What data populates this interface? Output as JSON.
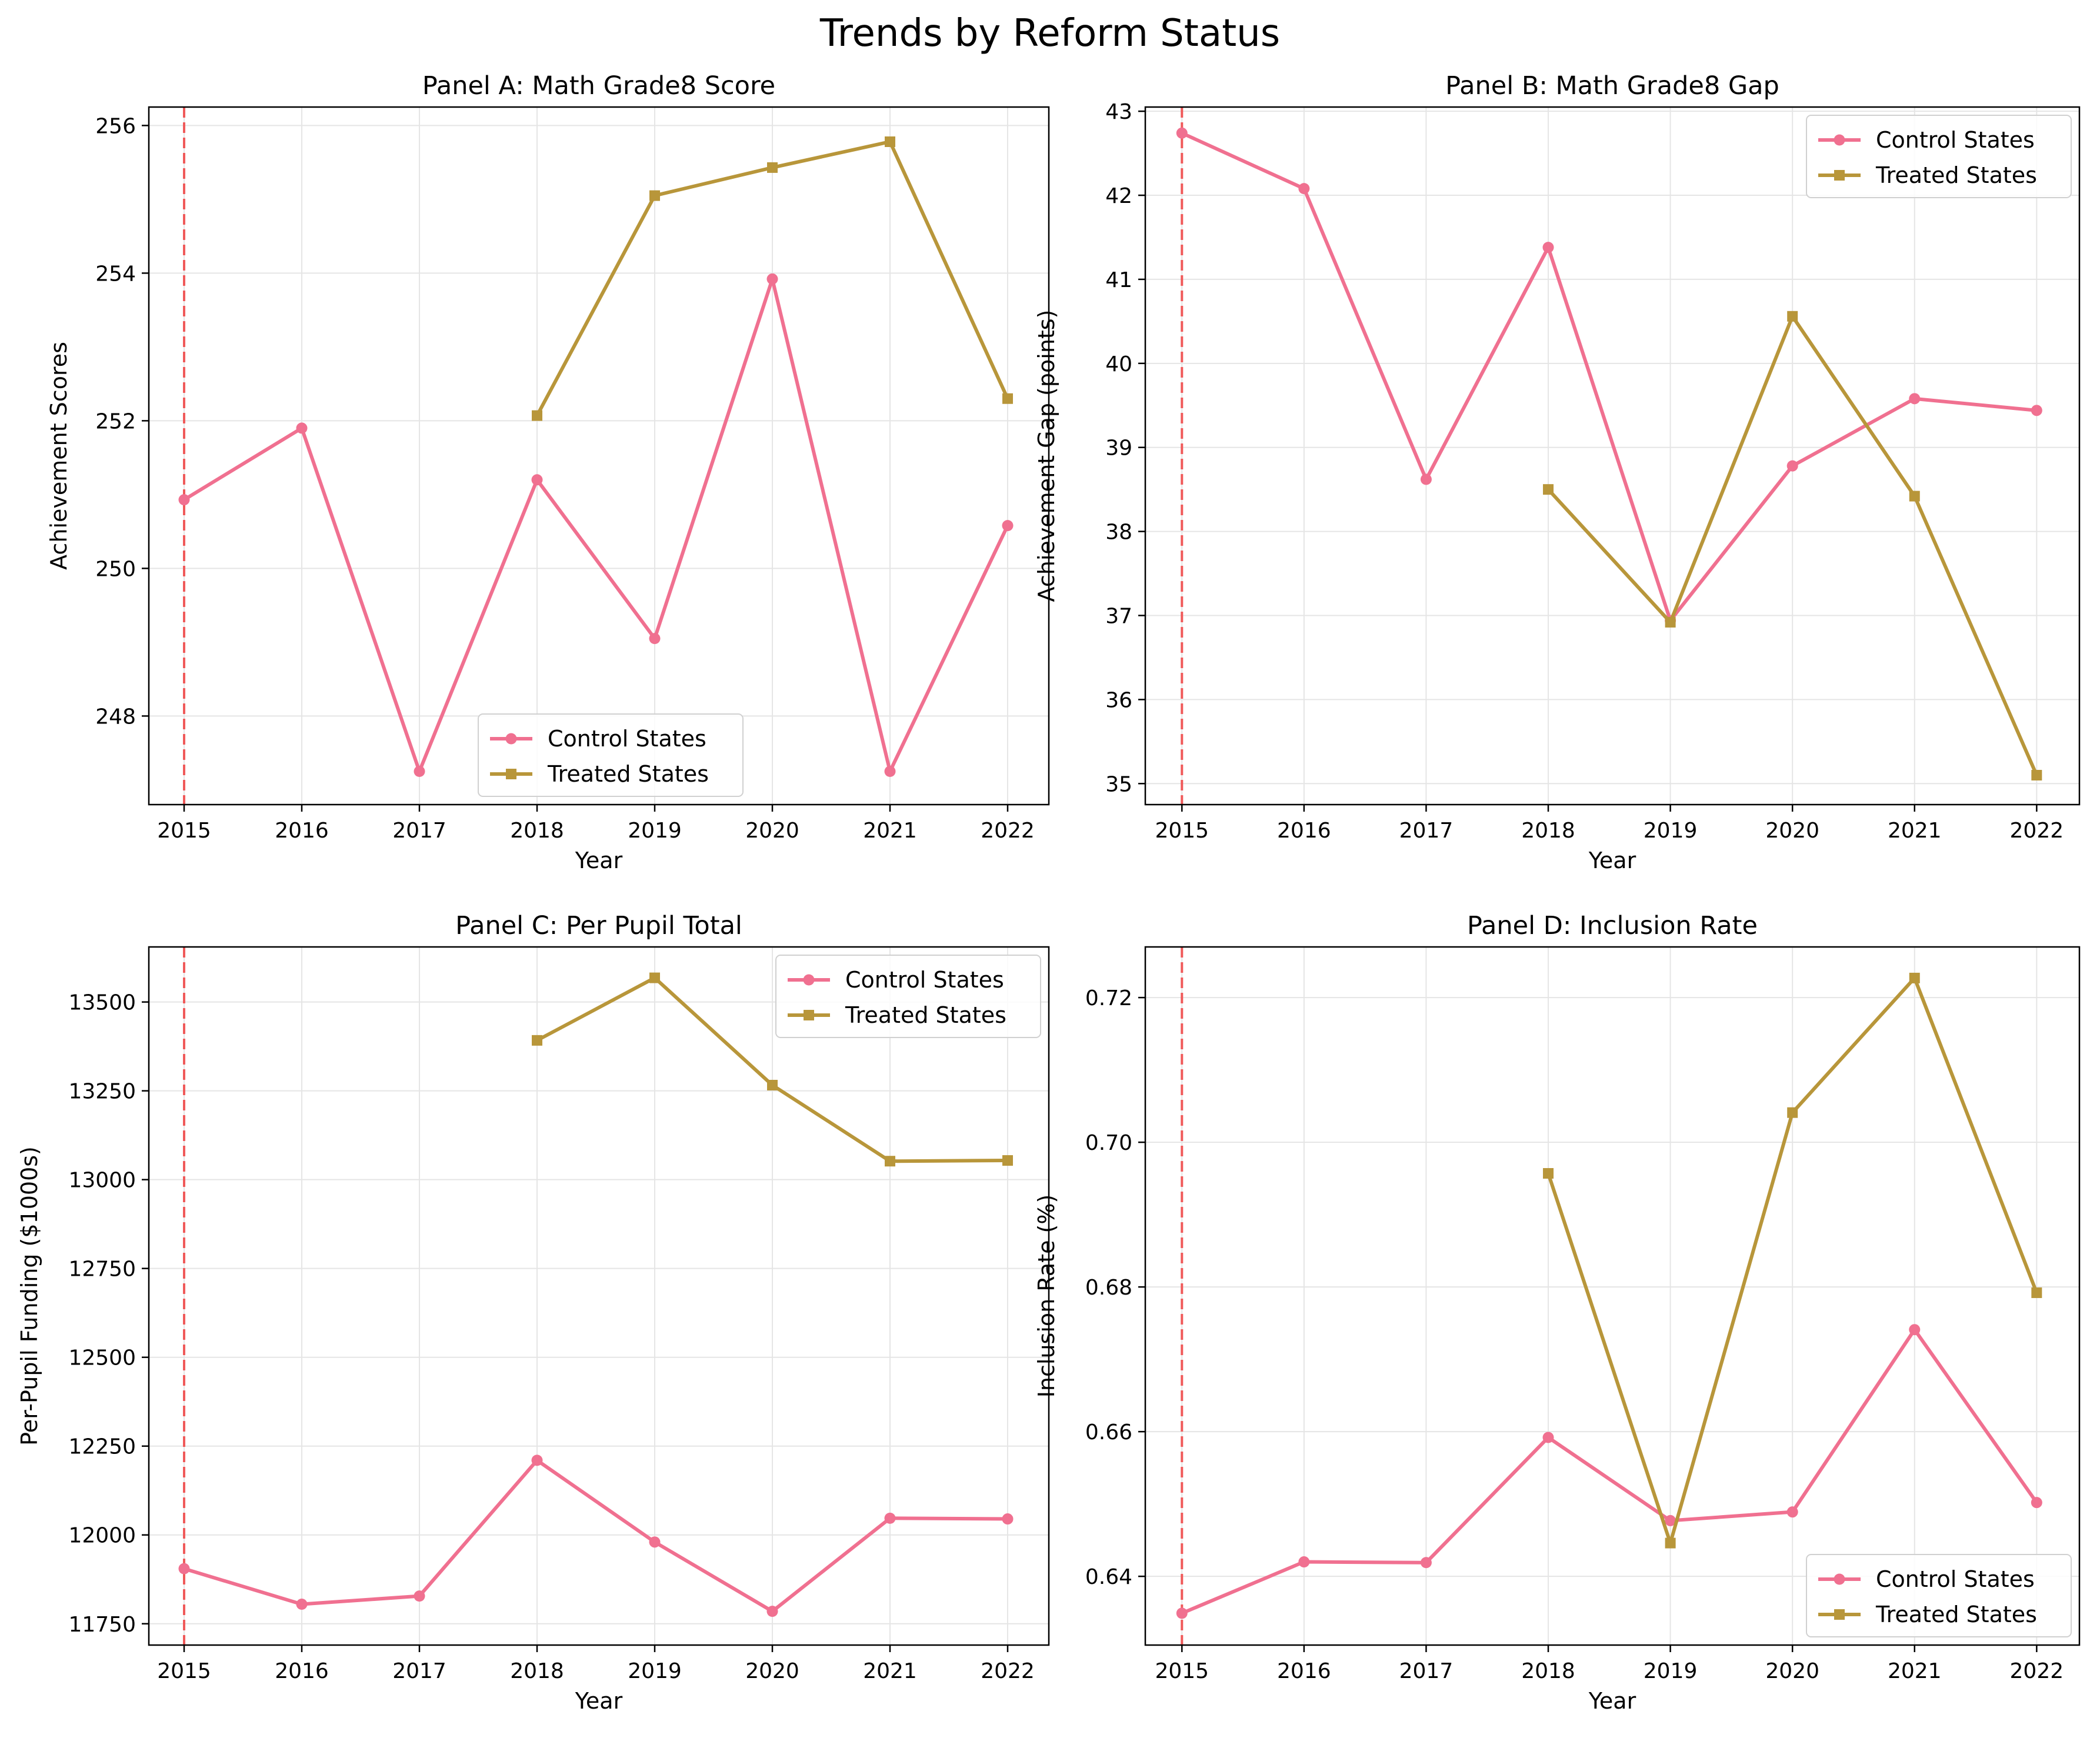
{
  "figure": {
    "title": "Trends by Reform Status"
  },
  "legend_labels": [
    "Control States",
    "Treated States"
  ],
  "colors": {
    "control": "#f07090",
    "treated": "#b8963a",
    "reform_line": "#f05a5a",
    "grid": "#e5e5e5"
  },
  "chart_data": [
    {
      "type": "line",
      "title": "Panel A: Math Grade8 Score",
      "xlabel": "Year",
      "ylabel": "Achievement Scores",
      "xlim": [
        2014.7,
        2022.35
      ],
      "ylim": [
        246.8,
        256.25
      ],
      "xticks": [
        2015,
        2016,
        2017,
        2018,
        2019,
        2020,
        2021,
        2022
      ],
      "yticks": [
        248,
        250,
        252,
        254,
        256
      ],
      "ytick_labels": [
        "248",
        "250",
        "252",
        "254",
        "256"
      ],
      "reform_year": 2015,
      "legend": "lower-center",
      "grid": true,
      "series": [
        {
          "name": "Control States",
          "marker": "circle",
          "x": [
            2015,
            2016,
            2017,
            2018,
            2019,
            2020,
            2021,
            2022
          ],
          "y": [
            250.93,
            251.9,
            247.25,
            251.2,
            249.05,
            253.92,
            247.25,
            250.58
          ]
        },
        {
          "name": "Treated States",
          "marker": "square",
          "x": [
            2018,
            2019,
            2020,
            2021,
            2022
          ],
          "y": [
            252.07,
            255.05,
            255.43,
            255.78,
            252.3
          ]
        }
      ]
    },
    {
      "type": "line",
      "title": "Panel B: Math Grade8 Gap",
      "xlabel": "Year",
      "ylabel": "Achievement Gap (points)",
      "xlim": [
        2014.7,
        2022.35
      ],
      "ylim": [
        34.75,
        43.05
      ],
      "xticks": [
        2015,
        2016,
        2017,
        2018,
        2019,
        2020,
        2021,
        2022
      ],
      "yticks": [
        35,
        36,
        37,
        38,
        39,
        40,
        41,
        42,
        43
      ],
      "ytick_labels": [
        "35",
        "36",
        "37",
        "38",
        "39",
        "40",
        "41",
        "42",
        "43"
      ],
      "reform_year": 2015,
      "legend": "upper-right",
      "grid": true,
      "series": [
        {
          "name": "Control States",
          "marker": "circle",
          "x": [
            2015,
            2016,
            2017,
            2018,
            2019,
            2020,
            2021,
            2022
          ],
          "y": [
            42.74,
            42.08,
            38.62,
            41.38,
            36.94,
            38.78,
            39.58,
            39.44
          ]
        },
        {
          "name": "Treated States",
          "marker": "square",
          "x": [
            2018,
            2019,
            2020,
            2021,
            2022
          ],
          "y": [
            38.5,
            36.92,
            40.56,
            38.42,
            35.1
          ]
        }
      ]
    },
    {
      "type": "line",
      "title": "Panel C: Per Pupil Total",
      "xlabel": "Year",
      "ylabel": "Per-Pupil Funding ($1000s)",
      "xlim": [
        2014.7,
        2022.35
      ],
      "ylim": [
        11690,
        13655
      ],
      "xticks": [
        2015,
        2016,
        2017,
        2018,
        2019,
        2020,
        2021,
        2022
      ],
      "yticks": [
        11750,
        12000,
        12250,
        12500,
        12750,
        13000,
        13250,
        13500
      ],
      "ytick_labels": [
        "11750",
        "12000",
        "12250",
        "12500",
        "12750",
        "13000",
        "13250",
        "13500"
      ],
      "reform_year": 2015,
      "legend": "upper-right",
      "grid": true,
      "series": [
        {
          "name": "Control States",
          "marker": "circle",
          "x": [
            2015,
            2016,
            2017,
            2018,
            2019,
            2020,
            2021,
            2022
          ],
          "y": [
            11905,
            11805,
            11828,
            12210,
            11980,
            11785,
            12047,
            12045
          ]
        },
        {
          "name": "Treated States",
          "marker": "square",
          "x": [
            2018,
            2019,
            2020,
            2021,
            2022
          ],
          "y": [
            13392,
            13568,
            13266,
            13052,
            13054
          ]
        }
      ]
    },
    {
      "type": "line",
      "title": "Panel D: Inclusion Rate",
      "xlabel": "Year",
      "ylabel": "Inclusion Rate (%)",
      "xlim": [
        2014.7,
        2022.35
      ],
      "ylim": [
        0.6305,
        0.727
      ],
      "xticks": [
        2015,
        2016,
        2017,
        2018,
        2019,
        2020,
        2021,
        2022
      ],
      "yticks": [
        0.64,
        0.66,
        0.68,
        0.7,
        0.72
      ],
      "ytick_labels": [
        "0.64",
        "0.66",
        "0.68",
        "0.70",
        "0.72"
      ],
      "reform_year": 2015,
      "legend": "lower-right",
      "grid": true,
      "series": [
        {
          "name": "Control States",
          "marker": "circle",
          "x": [
            2015,
            2016,
            2017,
            2018,
            2019,
            2020,
            2021,
            2022
          ],
          "y": [
            0.6349,
            0.642,
            0.6419,
            0.6592,
            0.6477,
            0.6489,
            0.6741,
            0.6502
          ]
        },
        {
          "name": "Treated States",
          "marker": "square",
          "x": [
            2018,
            2019,
            2020,
            2021,
            2022
          ],
          "y": [
            0.6957,
            0.6446,
            0.7041,
            0.7227,
            0.6792
          ]
        }
      ]
    }
  ]
}
